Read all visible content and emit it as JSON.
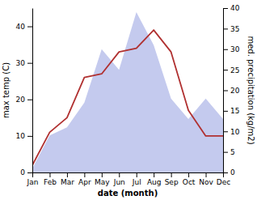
{
  "chart_data": {
    "type": "line",
    "categories": [
      "Jan",
      "Feb",
      "Mar",
      "Apr",
      "May",
      "Jun",
      "Jul",
      "Aug",
      "Sep",
      "Oct",
      "Nov",
      "Dec"
    ],
    "series": [
      {
        "type": "area",
        "axis": "y2",
        "color": "#b0b8e8",
        "values": [
          1,
          9,
          11,
          17,
          30,
          25,
          39,
          31,
          18,
          13,
          18,
          13
        ]
      },
      {
        "type": "line",
        "color": "#b03030",
        "values": [
          2,
          11,
          15,
          26,
          27,
          33,
          34,
          39,
          33,
          17,
          10,
          10
        ]
      }
    ],
    "xlabel": "date (month)",
    "ylabel": "max temp (C)",
    "y2label": "med. precipitation (kg/m2)",
    "ylim": [
      0,
      45
    ],
    "yticks": [
      0,
      10,
      20,
      30,
      40
    ],
    "y2lim": [
      0,
      40
    ],
    "y2ticks": [
      0,
      5,
      10,
      15,
      20,
      25,
      30,
      35,
      40
    ],
    "grid": false
  }
}
